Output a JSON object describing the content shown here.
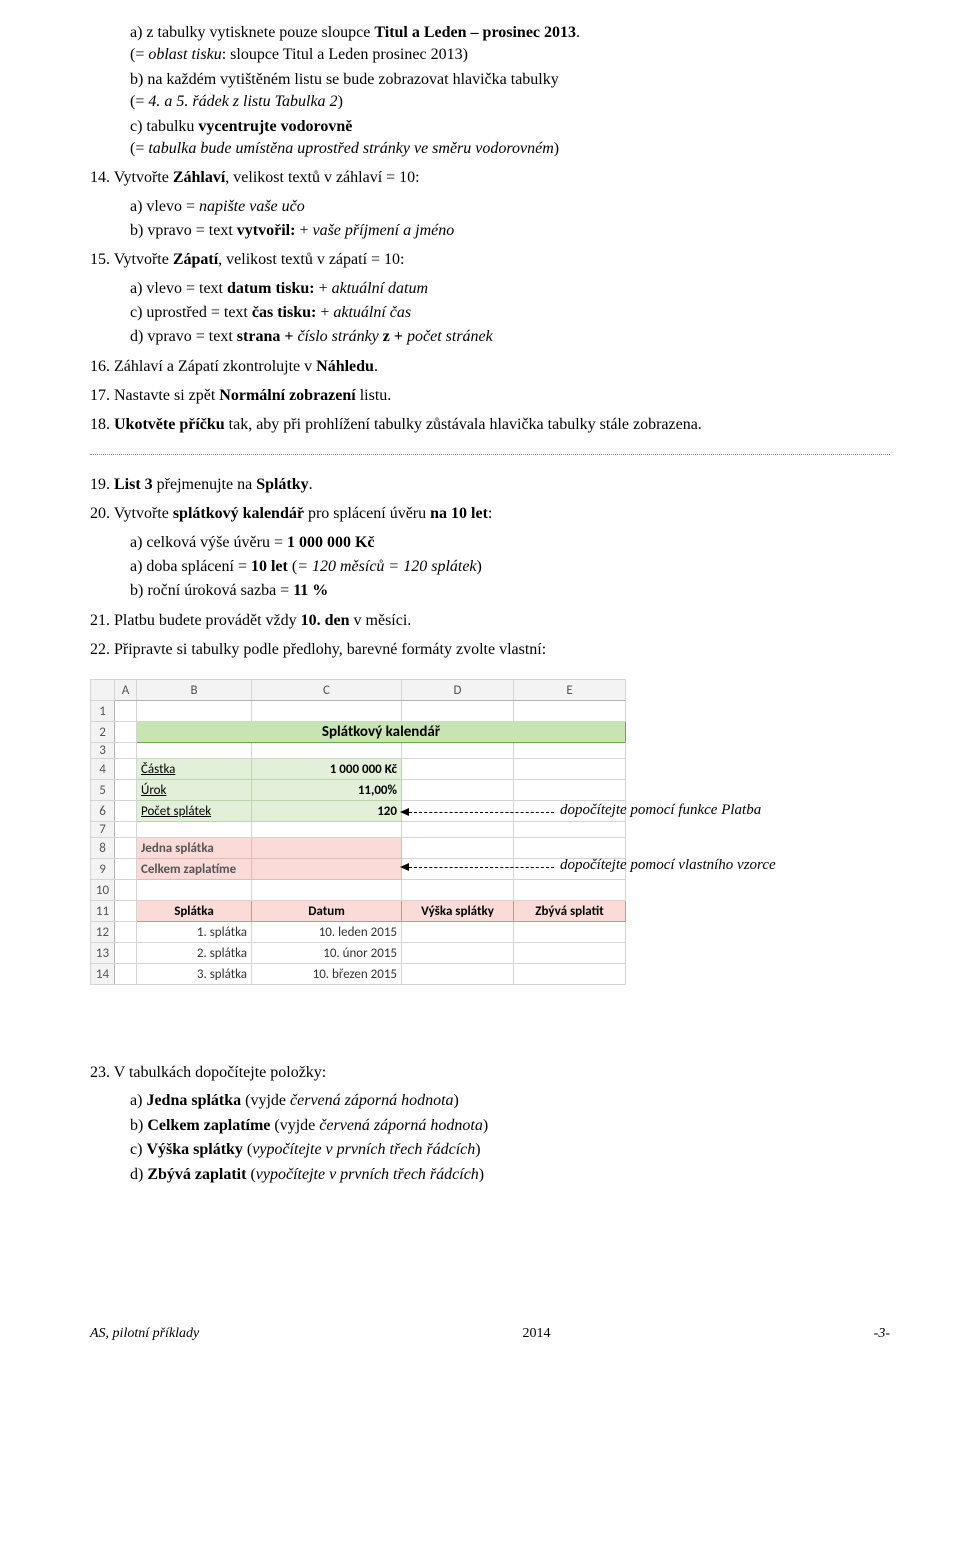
{
  "topSub_a": "a)  z tabulky vytisknete pouze sloupce <b>Titul a Leden – prosinec 2013</b>.<br>(= <i>oblast tisku</i>: sloupce Titul a Leden prosinec 2013)",
  "topSub_b": "b)  na každém vytištěném listu se bude zobrazovat hlavička tabulky<br>(= <i>4. a 5. řádek z listu Tabulka 2</i>)",
  "topSub_c": "c)  tabulku <b>vycentrujte vodorovně</b><br>(= <i>tabulka bude umístěna uprostřed stránky ve směru vodorovném</i>)",
  "i14": "14. Vytvořte <b>Záhlaví</b>, velikost textů v záhlaví = 10:",
  "i14a": "a)  vlevo = <i>napište vaše učo</i>",
  "i14b": "b)  vpravo = text <b>vytvořil:</b> +  <i>vaše příjmení a jméno</i>",
  "i15": "15. Vytvořte <b>Zápatí</b>, velikost textů v zápatí = 10:",
  "i15a": "a)  vlevo = text <b>datum tisku:</b>  + <i>aktuální datum</i>",
  "i15c": "c)  uprostřed = text <b>čas tisku:</b> + <i>aktuální čas</i>",
  "i15d": "d)  vpravo = text <b>strana +</b> <i>číslo stránky</i> <b>z +</b> <i>počet stránek</i>",
  "i16": "16. Záhlaví a Zápatí zkontrolujte v <b>Náhledu</b>.",
  "i17": "17. Nastavte si zpět <b>Normální zobrazení</b> listu.",
  "i18": "18. <b>Ukotvěte příčku</b> tak, aby při prohlížení tabulky zůstávala hlavička tabulky stále zobrazena.",
  "i19": "19. <b>List 3</b> přejmenujte na <b>Splátky</b>.",
  "i20": "20. Vytvořte <b>splátkový kalendář</b> pro splácení úvěru <b>na 10 let</b>:",
  "i20a": "a)  celková výše úvěru = <b>1 000 000 Kč</b>",
  "i20a2": "a)  doba splácení = <b>10 let</b> (<i>= 120 měsíců = 120 splátek</i>)",
  "i20b": "b)  roční úroková sazba = <b>11 %</b>",
  "i21": "21. Platbu budete provádět vždy <b>10. den</b> v měsíci.",
  "i22": "22. Připravte si tabulky podle předlohy, barevné formáty zvolte vlastní:",
  "sheet": {
    "colWidths": {
      "A": 22,
      "B": 115,
      "C": 150,
      "D": 112,
      "E": 112
    },
    "cols": [
      "A",
      "B",
      "C",
      "D",
      "E"
    ],
    "title": "Splátkový kalendář",
    "r4": {
      "b": "Částka",
      "c": "1 000 000 Kč"
    },
    "r5": {
      "b": "Úrok",
      "c": "11,00%"
    },
    "r6": {
      "b": "Počet splátek",
      "c": "120"
    },
    "r8": {
      "b": "Jedna splátka"
    },
    "r9": {
      "b": "Celkem zaplatíme"
    },
    "r11": {
      "b": "Splátka",
      "c": "Datum",
      "d": "Výška splátky",
      "e": "Zbývá splatit"
    },
    "r12": {
      "b": "1. splátka",
      "c": "10. leden 2015"
    },
    "r13": {
      "b": "2. splátka",
      "c": "10. únor 2015"
    },
    "r14": {
      "b": "3. splátka",
      "c": "10. březen 2015"
    }
  },
  "note1": "dopočítejte pomocí funkce Platba",
  "note2": "dopočítejte pomocí vlastního vzorce",
  "i23": "23. V tabulkách dopočítejte položky:",
  "i23a": "a)  <b>Jedna splátka</b> (vyjde <i>červená záporná hodnota</i>)",
  "i23b": "b)  <b>Celkem zaplatíme</b> (vyjde <i>červená záporná hodnota</i>)",
  "i23c": "c)  <b>Výška splátky</b> (<i>vypočítejte v prvních třech řádcích</i>)",
  "i23d": "d)  <b>Zbývá zaplatit</b> (<i>vypočítejte v prvních třech řádcích</i>)",
  "footerLeft": "AS, pilotní příklady",
  "footerMid": "2014",
  "footerRight": "-3-"
}
